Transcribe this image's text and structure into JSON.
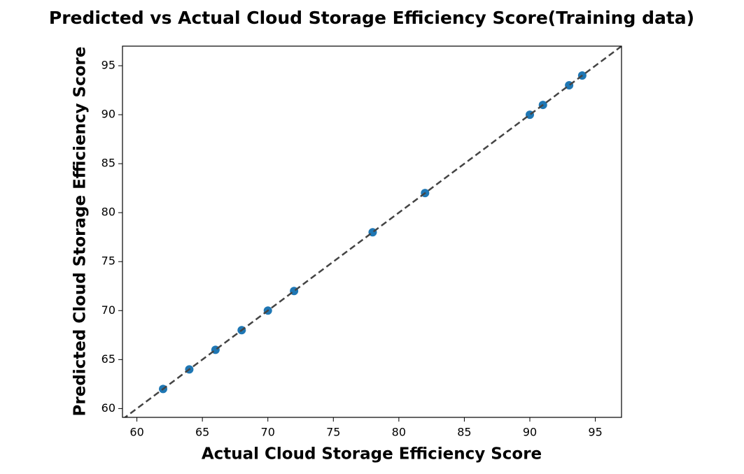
{
  "chart_data": {
    "type": "scatter",
    "title": "Predicted vs Actual Cloud Storage Efficiency Score(Training data)",
    "x_label": "Actual Cloud Storage Efficiency Score",
    "y_label": "Predicted Cloud Storage Efficiency Score",
    "x": [
      62,
      64,
      66,
      68,
      70,
      72,
      78,
      82,
      90,
      91,
      93,
      94
    ],
    "values": [
      62,
      64,
      66,
      68,
      70,
      72,
      78,
      82,
      90,
      91,
      93,
      94
    ],
    "color": "#1f77b4",
    "xlim": [
      58.9,
      97
    ],
    "ylim": [
      59.1,
      97
    ],
    "xticks": [
      60,
      65,
      70,
      75,
      80,
      85,
      90,
      95
    ],
    "yticks": [
      60,
      65,
      70,
      75,
      80,
      85,
      90,
      95
    ],
    "identity_line": true,
    "identity_line_color": "#444444",
    "grid": false
  }
}
